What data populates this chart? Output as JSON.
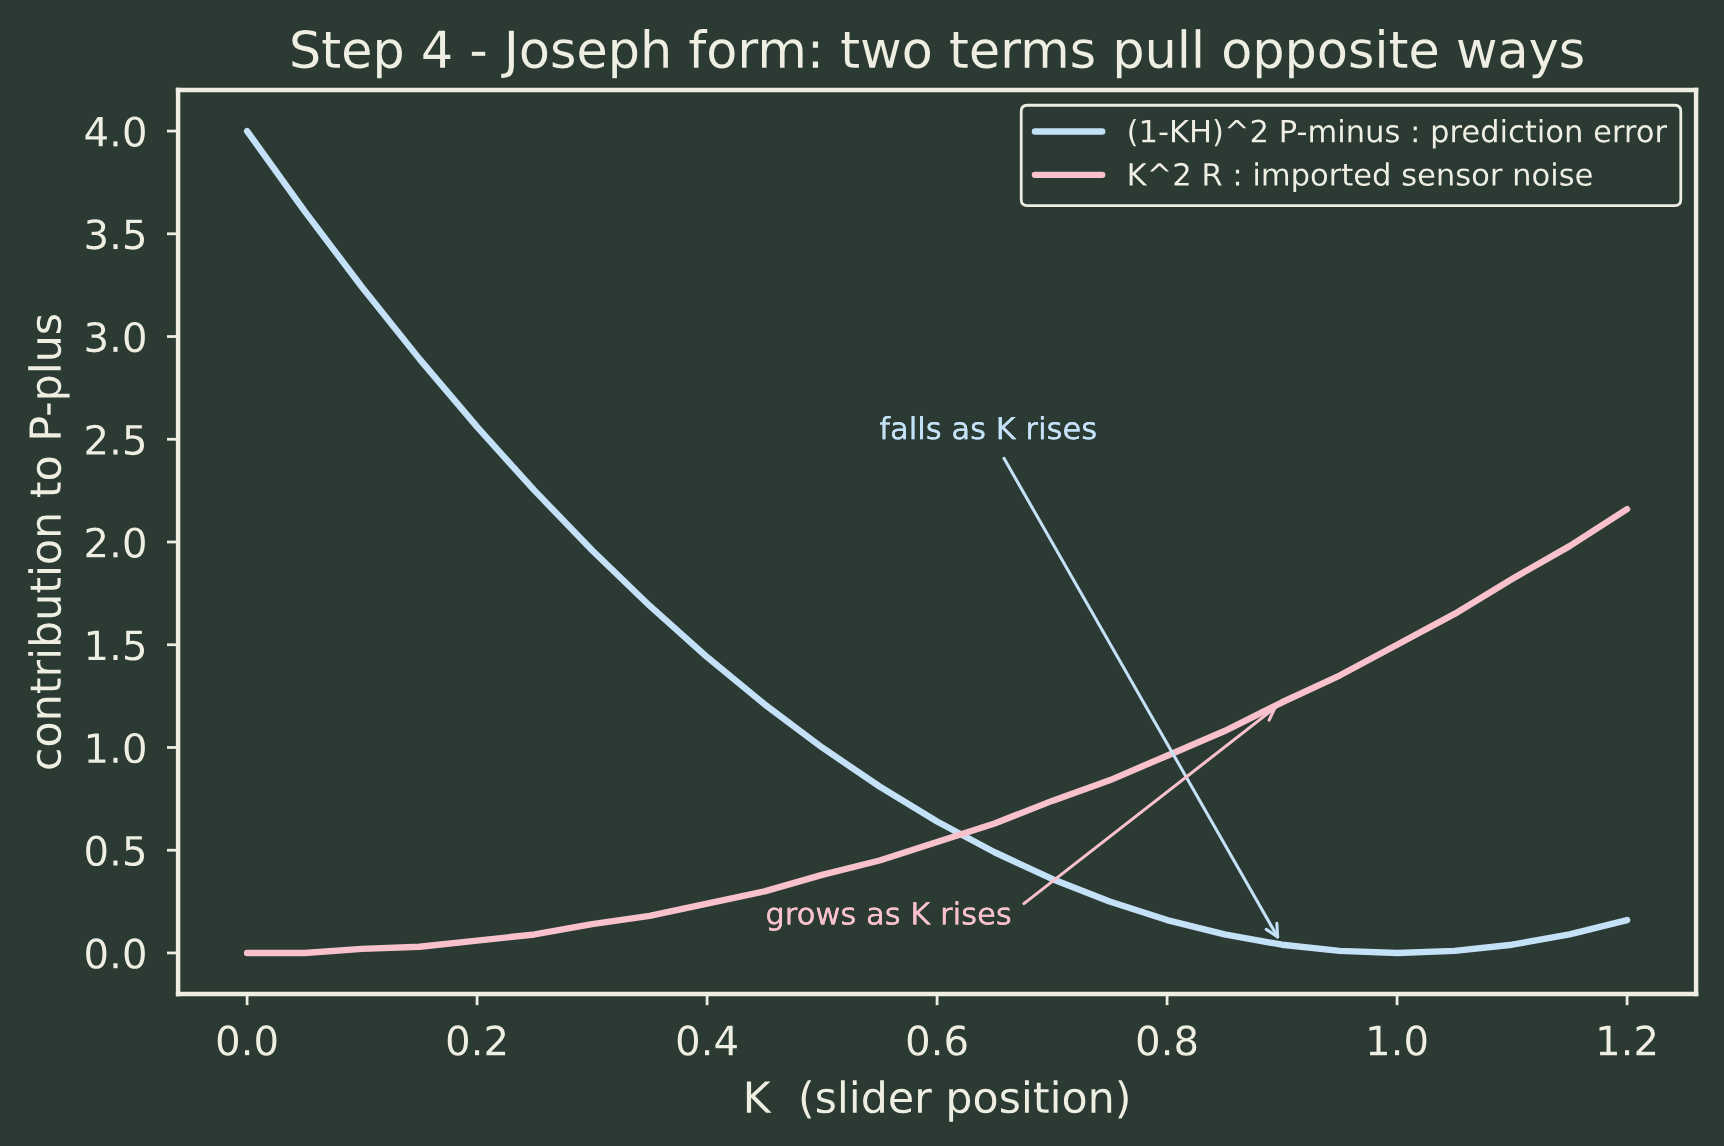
{
  "chart_data": {
    "type": "line",
    "title": "Step 4 - Joseph form: two terms pull opposite ways",
    "xlabel": "K  (slider position)",
    "ylabel": "contribution to P-plus",
    "x": [
      0,
      0.05,
      0.1,
      0.15,
      0.2,
      0.25,
      0.3,
      0.35,
      0.4,
      0.45,
      0.5,
      0.55,
      0.6,
      0.65,
      0.7,
      0.75,
      0.8,
      0.85,
      0.9,
      0.95,
      1.0,
      1.05,
      1.1,
      1.15,
      1.2
    ],
    "series": [
      {
        "name": "(1-KH)^2 P-minus : prediction error",
        "color": "#c4e1f8",
        "values": [
          4.0,
          3.61,
          3.24,
          2.89,
          2.56,
          2.25,
          1.96,
          1.69,
          1.44,
          1.21,
          1.0,
          0.81,
          0.64,
          0.49,
          0.36,
          0.25,
          0.16,
          0.09,
          0.04,
          0.01,
          0.0,
          0.01,
          0.04,
          0.09,
          0.16
        ]
      },
      {
        "name": "K^2 R : imported sensor noise",
        "color": "#f8c1cc",
        "values": [
          0.0,
          0.0,
          0.02,
          0.03,
          0.06,
          0.09,
          0.14,
          0.18,
          0.24,
          0.3,
          0.38,
          0.45,
          0.54,
          0.63,
          0.74,
          0.84,
          0.96,
          1.08,
          1.22,
          1.35,
          1.5,
          1.65,
          1.82,
          1.98,
          2.16
        ]
      }
    ],
    "annotations": [
      {
        "text": "falls as K rises",
        "x": 0.9,
        "y": 0.04
      },
      {
        "text": "grows as K rises",
        "x": 0.9,
        "y": 1.22
      }
    ],
    "xlim": [
      -0.06,
      1.26
    ],
    "ylim": [
      -0.2,
      4.2
    ],
    "xticks": [
      {
        "value": 0,
        "label": "0.0"
      },
      {
        "value": 0.2,
        "label": "0.2"
      },
      {
        "value": 0.4,
        "label": "0.4"
      },
      {
        "value": 0.6,
        "label": "0.6"
      },
      {
        "value": 0.8,
        "label": "0.8"
      },
      {
        "value": 1.0,
        "label": "1.0"
      },
      {
        "value": 1.2,
        "label": "1.2"
      }
    ],
    "yticks": [
      {
        "value": 0,
        "label": "0.0"
      },
      {
        "value": 0.5,
        "label": "0.5"
      },
      {
        "value": 1.0,
        "label": "1.0"
      },
      {
        "value": 1.5,
        "label": "1.5"
      },
      {
        "value": 2.0,
        "label": "2.0"
      },
      {
        "value": 2.5,
        "label": "2.5"
      },
      {
        "value": 3.0,
        "label": "3.0"
      },
      {
        "value": 3.5,
        "label": "3.5"
      },
      {
        "value": 4.0,
        "label": "4.0"
      }
    ],
    "legend": "top right",
    "grid": false,
    "marker": "none",
    "line_style": "solid"
  }
}
